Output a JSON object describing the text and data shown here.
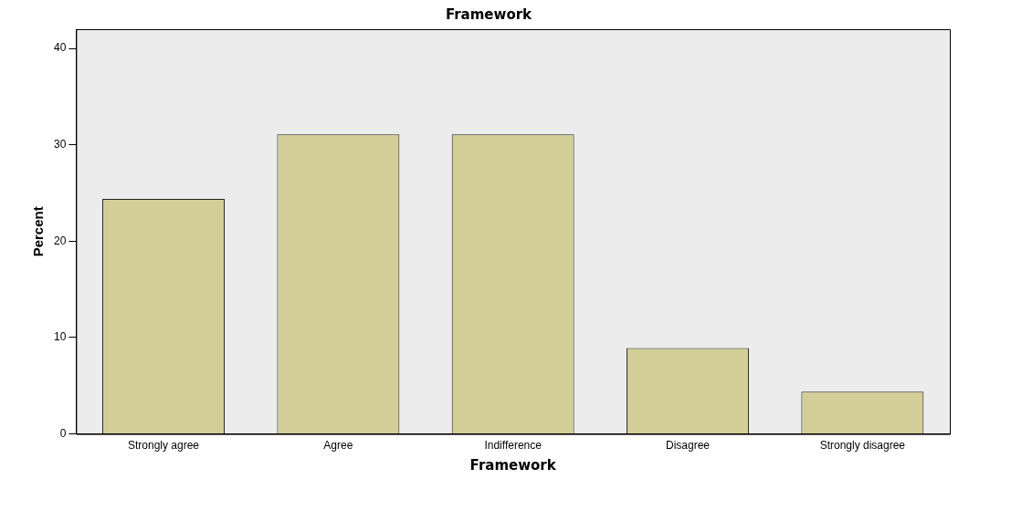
{
  "chart_data": {
    "type": "bar",
    "title": "Framework",
    "xlabel": "Framework",
    "ylabel": "Percent",
    "categories": [
      "Strongly agree",
      "Agree",
      "Indifference",
      "Disagree",
      "Strongly disagree"
    ],
    "values": [
      24.4,
      31.1,
      31.1,
      8.9,
      4.4
    ],
    "color": "#d3ce97",
    "ylim": [
      0,
      42
    ],
    "yticks": [
      0,
      10,
      20,
      30,
      40
    ],
    "grid": false,
    "legend": false
  }
}
